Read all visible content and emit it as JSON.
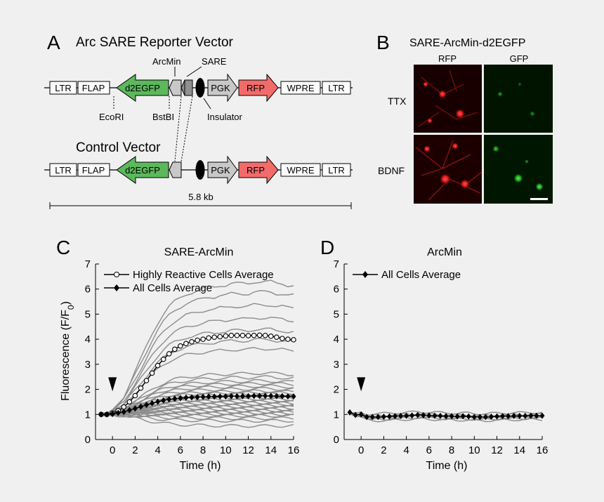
{
  "panels": {
    "a": {
      "letter": "A",
      "title": "Arc SARE Reporter Vector",
      "control_title": "Control Vector",
      "labels": {
        "arcmin": "ArcMin",
        "sare": "SARE",
        "ecori": "EcoRI",
        "bstbi": "BstBI",
        "insulator": "Insulator"
      },
      "elements": {
        "ltr": "LTR",
        "flap": "FLAP",
        "d2egfp": "d2EGFP",
        "pgk": "PGK",
        "rfp": "RFP",
        "wpre": "WPRE"
      },
      "scale_label": "5.8 kb",
      "colors": {
        "d2egfp": "#5cb85c",
        "rfp": "#f26b6b",
        "grey_box": "#c8c8c8",
        "dark_box": "#909090"
      }
    },
    "b": {
      "letter": "B",
      "title": "SARE-ArcMin-d2EGFP",
      "col_labels": [
        "RFP",
        "GFP"
      ],
      "row_labels": [
        "TTX",
        "BDNF"
      ]
    },
    "c": {
      "letter": "C"
    },
    "d": {
      "letter": "D"
    }
  },
  "chart_data": [
    {
      "type": "line",
      "title": "SARE-ArcMin",
      "xlabel": "Time (h)",
      "ylabel": "Fluorescence (F/F0)",
      "xlim": [
        -1.5,
        16
      ],
      "ylim": [
        0,
        7
      ],
      "xticks": [
        0,
        2,
        4,
        6,
        8,
        10,
        12,
        14,
        16
      ],
      "yticks": [
        0,
        1,
        2,
        3,
        4,
        5,
        6,
        7
      ],
      "stimulus_time": 0,
      "legend_position": "top-left",
      "series": [
        {
          "name": "Highly Reactive Cells  Average",
          "marker": "open-circle",
          "x": [
            -1,
            -0.5,
            0,
            0.5,
            1,
            1.5,
            2,
            2.5,
            3,
            3.5,
            4,
            4.5,
            5,
            5.5,
            6,
            6.5,
            7,
            7.5,
            8,
            8.5,
            9,
            9.5,
            10,
            10.5,
            11,
            11.5,
            12,
            12.5,
            13,
            13.5,
            14,
            14.5,
            15,
            15.5,
            16
          ],
          "values": [
            1.0,
            1.0,
            1.05,
            1.15,
            1.3,
            1.5,
            1.75,
            2.05,
            2.35,
            2.65,
            2.95,
            3.2,
            3.42,
            3.6,
            3.73,
            3.83,
            3.9,
            3.96,
            4.0,
            4.05,
            4.08,
            4.1,
            4.13,
            4.15,
            4.15,
            4.15,
            4.14,
            4.15,
            4.16,
            4.15,
            4.12,
            4.08,
            4.03,
            4.0,
            3.98
          ]
        },
        {
          "name": "All Cells Average",
          "marker": "filled-diamond",
          "x": [
            -1,
            -0.5,
            0,
            0.5,
            1,
            1.5,
            2,
            2.5,
            3,
            3.5,
            4,
            4.5,
            5,
            5.5,
            6,
            6.5,
            7,
            7.5,
            8,
            8.5,
            9,
            9.5,
            10,
            10.5,
            11,
            11.5,
            12,
            12.5,
            13,
            13.5,
            14,
            14.5,
            15,
            15.5,
            16
          ],
          "values": [
            1.0,
            1.0,
            1.02,
            1.06,
            1.1,
            1.17,
            1.24,
            1.31,
            1.38,
            1.45,
            1.51,
            1.56,
            1.6,
            1.63,
            1.65,
            1.67,
            1.68,
            1.69,
            1.7,
            1.71,
            1.71,
            1.72,
            1.72,
            1.73,
            1.73,
            1.73,
            1.73,
            1.74,
            1.74,
            1.74,
            1.74,
            1.73,
            1.73,
            1.72,
            1.72
          ]
        }
      ],
      "individual_cell_finals": [
        6.15,
        5.75,
        5.25,
        4.75,
        4.3,
        3.9,
        3.55,
        2.6,
        2.45,
        2.3,
        2.2,
        2.1,
        2.0,
        1.9,
        1.85,
        1.8,
        1.7,
        1.65,
        1.6,
        1.55,
        1.5,
        1.45,
        1.4,
        1.35,
        1.3,
        1.25,
        1.2,
        1.15,
        1.1,
        1.05,
        1.0,
        0.95,
        0.85,
        0.75,
        0.55
      ],
      "individual_cell_color": "#8c8c8c"
    },
    {
      "type": "line",
      "title": "ArcMin",
      "xlabel": "Time (h)",
      "ylabel": "",
      "xlim": [
        -1.5,
        16
      ],
      "ylim": [
        0,
        7
      ],
      "xticks": [
        0,
        2,
        4,
        6,
        8,
        10,
        12,
        14,
        16
      ],
      "yticks": [
        0,
        1,
        2,
        3,
        4,
        5,
        6,
        7
      ],
      "stimulus_time": 0,
      "legend_position": "top-left",
      "series": [
        {
          "name": "All Cells Average",
          "marker": "filled-diamond",
          "x": [
            -1,
            -0.5,
            0,
            0.5,
            1,
            1.5,
            2,
            2.5,
            3,
            3.5,
            4,
            4.5,
            5,
            5.5,
            6,
            6.5,
            7,
            7.5,
            8,
            8.5,
            9,
            9.5,
            10,
            10.5,
            11,
            11.5,
            12,
            12.5,
            13,
            13.5,
            14,
            14.5,
            15,
            15.5,
            16
          ],
          "values": [
            1.08,
            0.98,
            1.0,
            0.9,
            0.9,
            0.9,
            0.91,
            0.92,
            0.93,
            0.94,
            0.95,
            0.96,
            0.98,
            0.97,
            0.96,
            0.95,
            0.94,
            0.93,
            0.93,
            0.92,
            0.93,
            0.92,
            0.9,
            0.9,
            0.9,
            0.91,
            0.92,
            0.93,
            0.93,
            0.94,
            0.94,
            0.94,
            0.95,
            0.95,
            0.95
          ]
        }
      ],
      "individual_cell_finals": [
        1.08,
        1.0,
        0.95,
        0.9,
        0.85,
        0.8
      ],
      "individual_cell_color": "#8c8c8c"
    }
  ]
}
